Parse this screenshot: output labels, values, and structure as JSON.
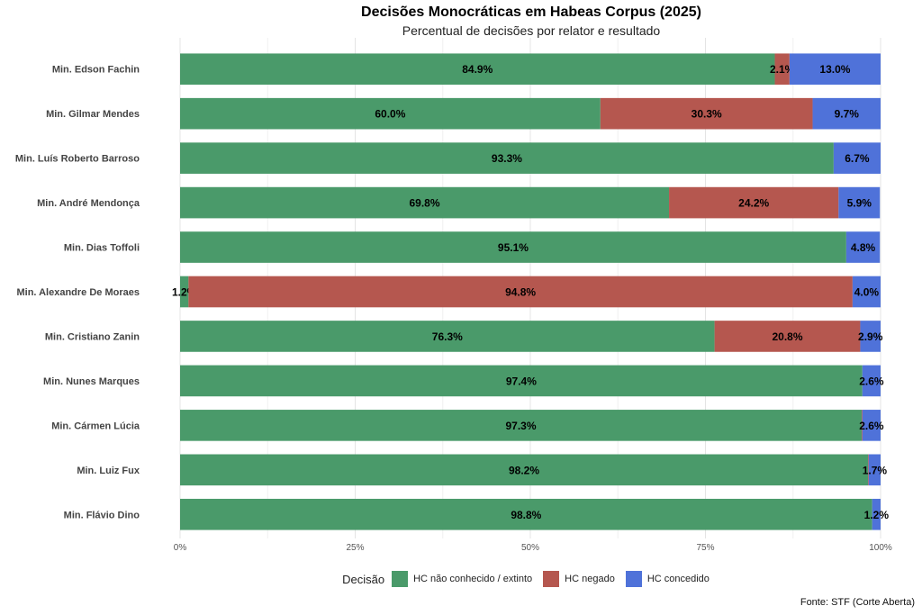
{
  "chart_data": {
    "type": "bar",
    "orientation": "horizontal",
    "stacked": true,
    "title": "Decisões Monocráticas em Habeas Corpus (2025)",
    "subtitle": "Percentual de decisões por relator e resultado",
    "caption": "Fonte: STF (Corte Aberta)",
    "legend_title": "Decisão",
    "legend_position": "bottom",
    "grid": true,
    "xlim": [
      0,
      100
    ],
    "x_ticks": [
      "0%",
      "25%",
      "50%",
      "75%",
      "100%"
    ],
    "categories": [
      "Min. Edson Fachin",
      "Min. Gilmar Mendes",
      "Min. Luís Roberto Barroso",
      "Min. André Mendonça",
      "Min. Dias Toffoli",
      "Min. Alexandre De Moraes",
      "Min. Cristiano Zanin",
      "Min. Nunes Marques",
      "Min. Cármen Lúcia",
      "Min. Luiz Fux",
      "Min. Flávio Dino"
    ],
    "series": [
      {
        "name": "HC não conhecido / extinto",
        "color": "#4a9a6a",
        "values": [
          84.9,
          60.0,
          93.3,
          69.8,
          95.1,
          1.2,
          76.3,
          97.4,
          97.3,
          98.2,
          98.8
        ],
        "labels": [
          "84.9%",
          "60.0%",
          "93.3%",
          "69.8%",
          "95.1%",
          "1.2%",
          "76.3%",
          "97.4%",
          "97.3%",
          "98.2%",
          "98.8%"
        ]
      },
      {
        "name": "HC negado",
        "color": "#b5574f",
        "values": [
          2.1,
          30.3,
          0,
          24.2,
          0,
          94.8,
          20.8,
          0,
          0.1,
          0.1,
          0
        ],
        "labels": [
          "2.1%",
          "30.3%",
          "",
          "24.2%",
          "",
          "94.8%",
          "20.8%",
          "",
          "",
          "",
          ""
        ]
      },
      {
        "name": "HC concedido",
        "color": "#4f72d9",
        "values": [
          13.0,
          9.7,
          6.7,
          5.9,
          4.8,
          4.0,
          2.9,
          2.6,
          2.6,
          1.7,
          1.2
        ],
        "labels": [
          "13.0%",
          "9.7%",
          "6.7%",
          "5.9%",
          "4.8%",
          "4.0%",
          "2.9%",
          "2.6%",
          "2.6%",
          "1.7%",
          "1.2%"
        ]
      }
    ]
  }
}
